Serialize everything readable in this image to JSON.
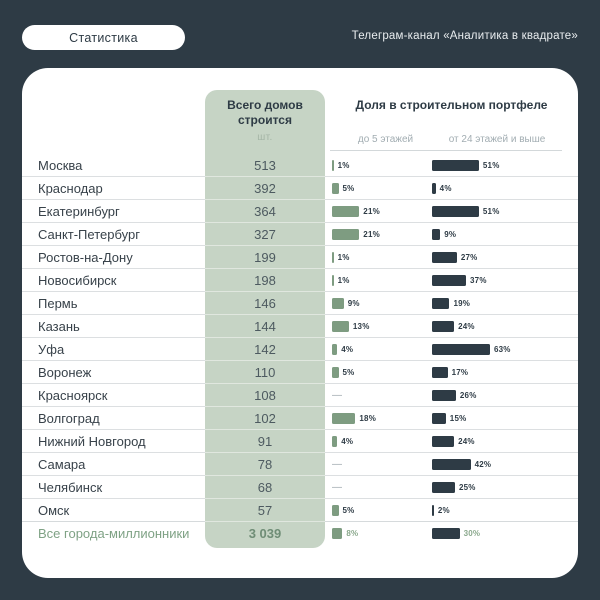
{
  "page": {
    "badge_label": "Статистика",
    "channel_label": "Телеграм-канал «Аналитика в квадрате»"
  },
  "colors": {
    "background": "#2e3b45",
    "card": "#ffffff",
    "green_column": "#c6d4c5",
    "green_bar": "#7e9c81",
    "dark_bar": "#2e3b45",
    "accent_green_text": "#7fa285"
  },
  "chart_data": {
    "type": "bar",
    "title": "Доля в строительном портфеле",
    "count_header": "Всего домов строится",
    "count_unit": "шт.",
    "series_labels": [
      "до 5 этажей",
      "от 24 этажей и выше"
    ],
    "legend_position": "column-subheaders",
    "grid": false,
    "xlim_low_pct": [
      0,
      21
    ],
    "xlim_high_pct": [
      0,
      63
    ],
    "rows": [
      {
        "city": "Москва",
        "total": "513",
        "low": 1,
        "low_label": "1%",
        "high": 51,
        "high_label": "51%"
      },
      {
        "city": "Краснодар",
        "total": "392",
        "low": 5,
        "low_label": "5%",
        "high": 4,
        "high_label": "4%"
      },
      {
        "city": "Екатеринбург",
        "total": "364",
        "low": 21,
        "low_label": "21%",
        "high": 51,
        "high_label": "51%"
      },
      {
        "city": "Санкт-Петербург",
        "total": "327",
        "low": 21,
        "low_label": "21%",
        "high": 9,
        "high_label": "9%"
      },
      {
        "city": "Ростов-на-Дону",
        "total": "199",
        "low": 1,
        "low_label": "1%",
        "high": 27,
        "high_label": "27%"
      },
      {
        "city": "Новосибирск",
        "total": "198",
        "low": 1,
        "low_label": "1%",
        "high": 37,
        "high_label": "37%"
      },
      {
        "city": "Пермь",
        "total": "146",
        "low": 9,
        "low_label": "9%",
        "high": 19,
        "high_label": "19%"
      },
      {
        "city": "Казань",
        "total": "144",
        "low": 13,
        "low_label": "13%",
        "high": 24,
        "high_label": "24%"
      },
      {
        "city": "Уфа",
        "total": "142",
        "low": 4,
        "low_label": "4%",
        "high": 63,
        "high_label": "63%"
      },
      {
        "city": "Воронеж",
        "total": "110",
        "low": 5,
        "low_label": "5%",
        "high": 17,
        "high_label": "17%"
      },
      {
        "city": "Красноярск",
        "total": "108",
        "low": null,
        "low_label": "—",
        "high": 26,
        "high_label": "26%"
      },
      {
        "city": "Волгоград",
        "total": "102",
        "low": 18,
        "low_label": "18%",
        "high": 15,
        "high_label": "15%"
      },
      {
        "city": "Нижний Новгород",
        "total": "91",
        "low": 4,
        "low_label": "4%",
        "high": 24,
        "high_label": "24%"
      },
      {
        "city": "Самара",
        "total": "78",
        "low": null,
        "low_label": "—",
        "high": 42,
        "high_label": "42%"
      },
      {
        "city": "Челябинск",
        "total": "68",
        "low": null,
        "low_label": "—",
        "high": 25,
        "high_label": "25%"
      },
      {
        "city": "Омск",
        "total": "57",
        "low": 5,
        "low_label": "5%",
        "high": 2,
        "high_label": "2%"
      }
    ],
    "summary": {
      "city": "Все города-миллионники",
      "total": "3 039",
      "low": 8,
      "low_label": "8%",
      "high": 30,
      "high_label": "30%"
    }
  }
}
